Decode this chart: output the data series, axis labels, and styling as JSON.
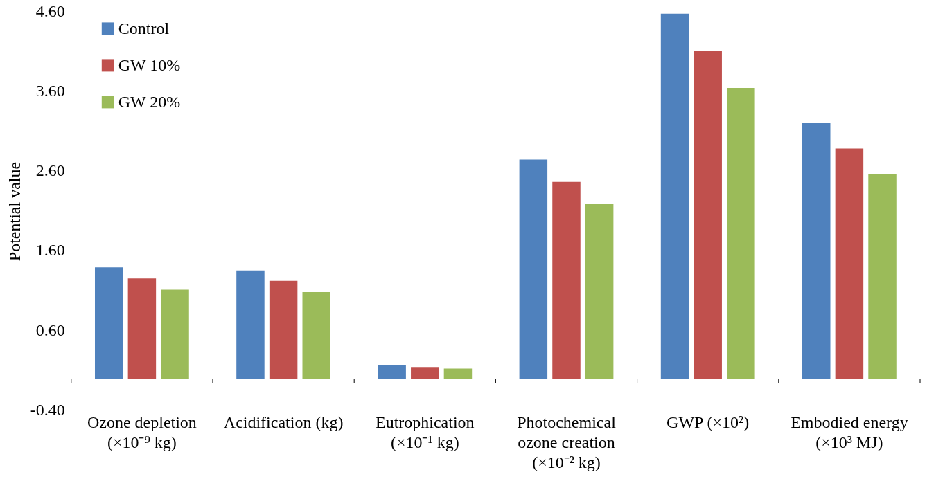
{
  "chart_data": {
    "type": "bar",
    "ylabel": "Potential value",
    "categories": [
      "Ozone depletion (×10⁻⁹ kg)",
      "Acidification (kg)",
      "Eutrophication (×10⁻¹ kg)",
      "Photochemical ozone creation (×10⁻² kg)",
      "GWP (×10²)",
      "Embodied energy (×10³ MJ)"
    ],
    "series": [
      {
        "name": "Control",
        "color": "#4f81bd",
        "values": [
          1.4,
          1.36,
          0.17,
          2.75,
          4.58,
          3.21
        ]
      },
      {
        "name": "GW 10%",
        "color": "#c0504d",
        "values": [
          1.26,
          1.23,
          0.15,
          2.47,
          4.11,
          2.89
        ]
      },
      {
        "name": "GW 20%",
        "color": "#9bbb59",
        "values": [
          1.12,
          1.09,
          0.13,
          2.2,
          3.65,
          2.57
        ]
      }
    ],
    "ylim": [
      -0.4,
      4.6
    ],
    "yticks": [
      {
        "value": -0.4,
        "label": "-0.40"
      },
      {
        "value": 0.6,
        "label": "0.60"
      },
      {
        "value": 1.6,
        "label": "1.60"
      },
      {
        "value": 2.6,
        "label": "2.60"
      },
      {
        "value": 3.6,
        "label": "3.60"
      },
      {
        "value": 4.6,
        "label": "4.60"
      }
    ],
    "grid": false,
    "legend": "top left"
  }
}
